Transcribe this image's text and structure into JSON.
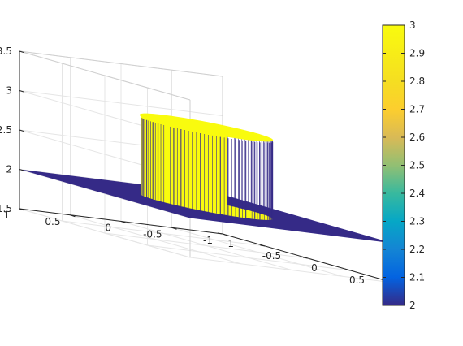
{
  "chart_data": {
    "type": "surface",
    "title": "",
    "xlabel": "",
    "ylabel": "",
    "zlabel": "",
    "xlim": [
      -1,
      1
    ],
    "ylim": [
      -1,
      1
    ],
    "zlim": [
      1.5,
      3.5
    ],
    "x_ticks": [
      "-1",
      "-0.5",
      "0",
      "0.5",
      "1"
    ],
    "y_ticks": [
      "-1",
      "-0.5",
      "0",
      "0.5",
      "1"
    ],
    "z_ticks": [
      "1.5",
      "2",
      "2.5",
      "3",
      "3.5"
    ],
    "surface": {
      "description_values": {
        "base_z": 2,
        "top_z": 3,
        "disc_radius": 0.5
      },
      "x": [
        -1,
        -0.5,
        0,
        0.5,
        1
      ],
      "y": [
        -1,
        -0.5,
        0,
        0.5,
        1
      ],
      "z": [
        [
          2,
          2,
          2,
          2,
          2
        ],
        [
          2,
          2,
          3,
          2,
          2
        ],
        [
          2,
          3,
          3,
          3,
          2
        ],
        [
          2,
          2,
          3,
          2,
          2
        ],
        [
          2,
          2,
          2,
          2,
          2
        ]
      ]
    },
    "grid": true,
    "colorbar": {
      "colormap": "parula",
      "range": [
        2,
        3
      ],
      "ticks": [
        "2",
        "2.1",
        "2.2",
        "2.3",
        "2.4",
        "2.5",
        "2.6",
        "2.7",
        "2.8",
        "2.9",
        "3"
      ]
    },
    "colors": {
      "low": "#352a87",
      "high": "#f9fb0e",
      "axis": "#262626",
      "grid": "#e5e5e5"
    }
  }
}
